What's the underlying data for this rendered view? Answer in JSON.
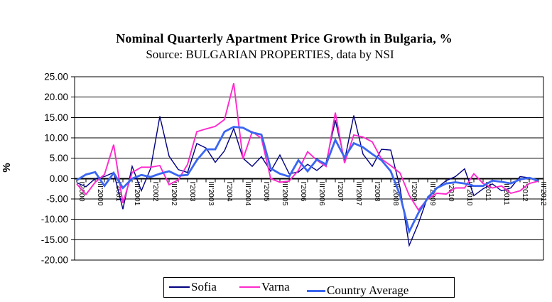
{
  "header": {
    "title": "Nominal Quarterly Apartment Price Growth in Bulgaria, %",
    "subtitle": "Source: BULGARIAN PROPERTIES, data by NSI"
  },
  "axes": {
    "y_title": "%",
    "y_tick_labels": [
      "25.00",
      "20.00",
      "15.00",
      "10.00",
      "5.00",
      "0.00",
      "-5.00",
      "-10.00",
      "-15.00",
      "-20.00"
    ],
    "x_tick_labels_shown": [
      "I'2000",
      "III'2000",
      "I'2001",
      "III'2001",
      "I'2002",
      "III'2002",
      "I'2003",
      "III'2003",
      "I'2004",
      "III'2004",
      "I'2005",
      "III'2005",
      "I'2006",
      "III'2006",
      "I'2007",
      "III'2007",
      "I'2008",
      "III'2008",
      "I'2009",
      "III'2009",
      "I'2010",
      "III'2010",
      "I'2011",
      "III'2011",
      "I'2012",
      "III'2012"
    ]
  },
  "chart_data": {
    "type": "line",
    "title": "Nominal Quarterly Apartment Price Growth in Bulgaria, %",
    "subtitle": "Source: BULGARIAN PROPERTIES, data by NSI",
    "ylabel": "%",
    "ylim": [
      -20,
      25
    ],
    "y_step": 5,
    "grid": "horizontal",
    "legend_position": "bottom",
    "x_label_rule": "every second quarter labeled, rotated 90 degrees",
    "categories": [
      "I'2000",
      "II'2000",
      "III'2000",
      "IV'2000",
      "I'2001",
      "II'2001",
      "III'2001",
      "IV'2001",
      "I'2002",
      "II'2002",
      "III'2002",
      "IV'2002",
      "I'2003",
      "II'2003",
      "III'2003",
      "IV'2003",
      "I'2004",
      "II'2004",
      "III'2004",
      "IV'2004",
      "I'2005",
      "II'2005",
      "III'2005",
      "IV'2005",
      "I'2006",
      "II'2006",
      "III'2006",
      "IV'2006",
      "I'2007",
      "II'2007",
      "III'2007",
      "IV'2007",
      "I'2008",
      "II'2008",
      "III'2008",
      "IV'2008",
      "I'2009",
      "II'2009",
      "III'2009",
      "IV'2009",
      "I'2010",
      "II'2010",
      "III'2010",
      "IV'2010",
      "I'2011",
      "II'2011",
      "III'2011",
      "IV'2011",
      "I'2012",
      "II'2012",
      "III'2012"
    ],
    "series": [
      {
        "name": "Sofia",
        "color": "#000080",
        "line_width": 1.4,
        "values": [
          -1.0,
          -2.0,
          0.0,
          0.5,
          1.5,
          -7.5,
          3.0,
          -3.0,
          2.5,
          15.3,
          5.5,
          2.2,
          1.5,
          8.6,
          7.5,
          4.0,
          6.8,
          12.3,
          5.0,
          3.0,
          5.4,
          1.8,
          5.8,
          1.2,
          1.6,
          3.5,
          2.0,
          3.9,
          14.3,
          4.5,
          15.5,
          6.0,
          3.0,
          7.2,
          7.0,
          -2.2,
          -16.4,
          -11.0,
          -4.5,
          -2.3,
          -0.5,
          0.5,
          2.4,
          -4.2,
          -2.5,
          -1.3,
          -3.0,
          -2.3,
          0.5,
          0.2,
          -0.8
        ]
      },
      {
        "name": "Varna",
        "color": "#FF29CC",
        "line_width": 1.9,
        "values": [
          -1.3,
          -3.9,
          -0.9,
          1.0,
          8.3,
          -6.0,
          1.5,
          2.8,
          2.8,
          3.2,
          -1.5,
          -0.3,
          3.5,
          11.5,
          12.2,
          12.8,
          14.5,
          23.4,
          4.8,
          11.5,
          9.9,
          0.0,
          -0.9,
          -0.6,
          2.0,
          6.6,
          4.5,
          3.0,
          16.2,
          3.8,
          10.7,
          10.2,
          9.0,
          4.8,
          3.2,
          1.4,
          -4.1,
          -7.7,
          -5.0,
          -3.6,
          -3.8,
          -2.3,
          -2.3,
          1.2,
          -1.2,
          -2.3,
          -1.8,
          -3.6,
          -3.0,
          -1.2,
          -0.6
        ]
      },
      {
        "name": "Country Average",
        "color": "#3A66F1",
        "line_width": 2.8,
        "values": [
          -0.4,
          1.0,
          1.6,
          -1.8,
          1.4,
          -2.3,
          0.0,
          0.9,
          0.4,
          1.2,
          1.8,
          0.7,
          0.9,
          4.5,
          7.2,
          7.2,
          11.5,
          12.7,
          12.5,
          11.3,
          10.8,
          2.5,
          1.2,
          0.5,
          4.5,
          1.8,
          4.7,
          3.5,
          9.5,
          5.2,
          8.7,
          7.7,
          6.0,
          4.5,
          1.8,
          -4.0,
          -13.0,
          -8.4,
          -4.8,
          -2.3,
          -1.2,
          -0.9,
          -1.2,
          -1.8,
          -1.8,
          -0.5,
          -0.8,
          -1.2,
          -0.2,
          0.2,
          -0.5
        ]
      }
    ]
  }
}
